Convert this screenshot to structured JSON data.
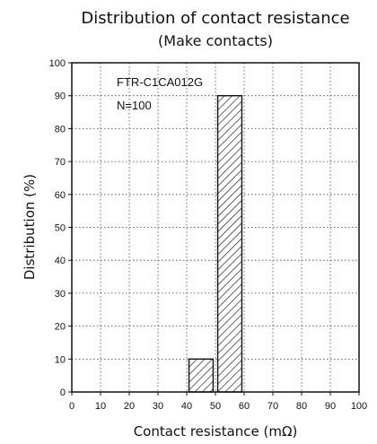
{
  "chart_data": {
    "type": "bar",
    "title": "Distribution of contact resistance",
    "subtitle": "(Make contacts)",
    "xlabel": "Contact resistance (mΩ)",
    "ylabel": "Distribution (%)",
    "xlim": [
      0,
      100
    ],
    "ylim": [
      0,
      100
    ],
    "xticks": [
      "0",
      "10",
      "20",
      "30",
      "40",
      "50",
      "60",
      "70",
      "80",
      "90",
      "100"
    ],
    "yticks": [
      "0",
      "10",
      "20",
      "30",
      "40",
      "50",
      "60",
      "70",
      "80",
      "90",
      "100"
    ],
    "grid": true,
    "bar_fill": "hatched",
    "bars": [
      {
        "x_range": [
          40,
          50
        ],
        "value": 10
      },
      {
        "x_range": [
          50,
          60
        ],
        "value": 90
      }
    ],
    "annotations": [
      "FTR-C1CA012G",
      "N=100"
    ]
  }
}
